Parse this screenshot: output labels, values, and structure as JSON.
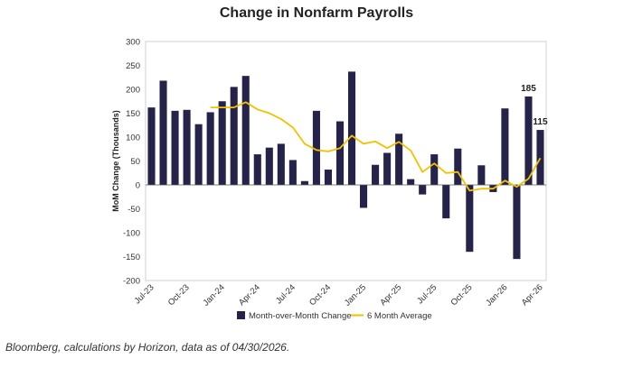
{
  "chart_data": {
    "type": "bar",
    "title": "Change in Nonfarm Payrolls",
    "ylabel": "MoM Change (Thousands)",
    "xlabel": "",
    "ylim": [
      -200,
      300
    ],
    "yticks": [
      -200,
      -150,
      -100,
      -50,
      0,
      50,
      100,
      150,
      200,
      250,
      300
    ],
    "categories": [
      "Jul-23",
      "Aug-23",
      "Sep-23",
      "Oct-23",
      "Nov-23",
      "Dec-23",
      "Jan-24",
      "Feb-24",
      "Mar-24",
      "Apr-24",
      "May-24",
      "Jun-24",
      "Jul-24",
      "Aug-24",
      "Sep-24",
      "Oct-24",
      "Nov-24",
      "Dec-24",
      "Jan-25",
      "Feb-25",
      "Mar-25",
      "Apr-25",
      "May-25",
      "Jun-25",
      "Jul-25",
      "Aug-25",
      "Sep-25",
      "Oct-25",
      "Nov-25",
      "Dec-25",
      "Jan-26",
      "Feb-26",
      "Mar-26",
      "Apr-26"
    ],
    "x_tick_labels": [
      "Jul-23",
      "Oct-23",
      "Jan-24",
      "Apr-24",
      "Jul-24",
      "Oct-24",
      "Jan-25",
      "Apr-25",
      "Jul-25",
      "Oct-25",
      "Jan-26",
      "Apr-26"
    ],
    "series": [
      {
        "name": "Month-over-Month Change",
        "type": "bar",
        "color": "#25234a",
        "values": [
          162,
          218,
          155,
          157,
          127,
          152,
          175,
          205,
          228,
          64,
          78,
          86,
          52,
          8,
          155,
          32,
          133,
          237,
          -48,
          42,
          67,
          107,
          12,
          -20,
          64,
          -70,
          76,
          -140,
          41,
          -15,
          160,
          -155,
          185,
          115
        ]
      },
      {
        "name": "6 Month Average",
        "type": "line",
        "color": "#f2c200",
        "values": [
          null,
          null,
          null,
          null,
          null,
          162,
          162,
          162,
          173,
          158,
          150,
          138,
          120,
          86,
          73,
          70,
          77,
          103,
          86,
          91,
          77,
          90,
          72,
          27,
          45,
          25,
          27,
          -12,
          -8,
          -8,
          9,
          -4,
          13,
          56
        ]
      }
    ],
    "annotations": [
      {
        "category": "Mar-26",
        "value": 185,
        "text": "185"
      },
      {
        "category": "Apr-26",
        "value": 115,
        "text": "115"
      }
    ],
    "legend": "bottom",
    "grid": false
  },
  "source_note": "Bloomberg, calculations by Horizon, data as of 04/30/2026."
}
